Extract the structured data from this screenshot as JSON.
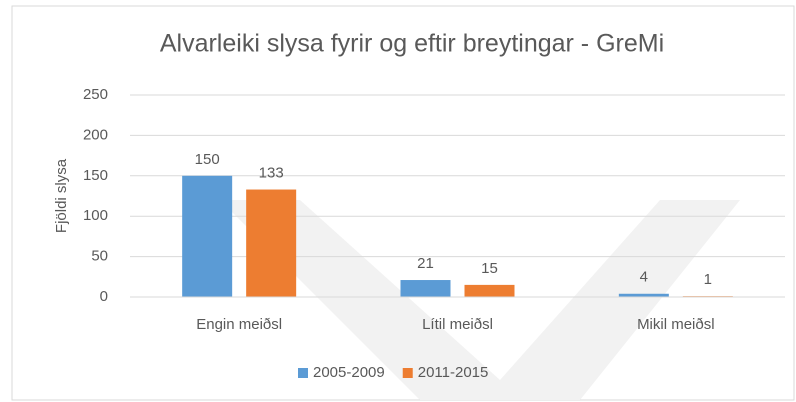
{
  "chart_data": {
    "type": "bar",
    "title": "Alvarleiki slysa fyrir og eftir breytingar - GreMi",
    "y_label": "Fjöldi slysa",
    "categories": [
      "Engin meiðsl",
      "Lítil meiðsl",
      "Mikil meiðsl"
    ],
    "series": [
      {
        "name": "2005-2009",
        "color": "#5b9bd5",
        "values": [
          150,
          21,
          4
        ]
      },
      {
        "name": "2011-2015",
        "color": "#ed7d31",
        "values": [
          133,
          15,
          1
        ]
      }
    ],
    "ylim": [
      0,
      250
    ],
    "yticks": [
      0,
      50,
      100,
      150,
      200,
      250
    ],
    "grid": true,
    "legend": "bottom"
  }
}
